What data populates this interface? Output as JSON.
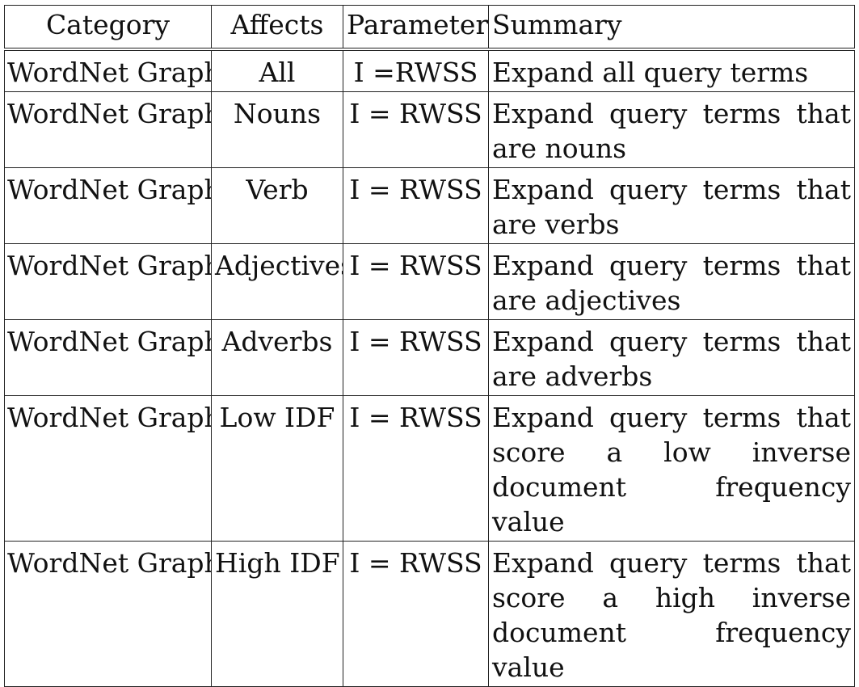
{
  "headers": [
    "Category",
    "Affects",
    "Parameters",
    "Summary"
  ],
  "rows": [
    {
      "category": "WordNet Graph",
      "affects": "All",
      "parameters": "I =RWSS",
      "summary": "Expand all query terms"
    },
    {
      "category": "WordNet Graph",
      "affects": "Nouns",
      "parameters": "I = RWSS",
      "summary": "Expand query terms that are nouns"
    },
    {
      "category": "WordNet Graph",
      "affects": "Verb",
      "parameters": "I = RWSS",
      "summary": "Expand query terms that are verbs"
    },
    {
      "category": "WordNet Graph",
      "affects": "Adjectives",
      "parameters": "I = RWSS",
      "summary": "Expand query terms that are adjectives"
    },
    {
      "category": "WordNet Graph",
      "affects": "Adverbs",
      "parameters": "I = RWSS",
      "summary": "Expand query terms that are adverbs"
    },
    {
      "category": "WordNet Graph",
      "affects": "Low IDF",
      "parameters": "I = RWSS",
      "summary": "Expand query terms that score a low inverse document frequency value"
    },
    {
      "category": "WordNet Graph",
      "affects": "High IDF",
      "parameters": "I = RWSS",
      "summary": "Expand query terms that score a high inverse document frequency value"
    }
  ]
}
